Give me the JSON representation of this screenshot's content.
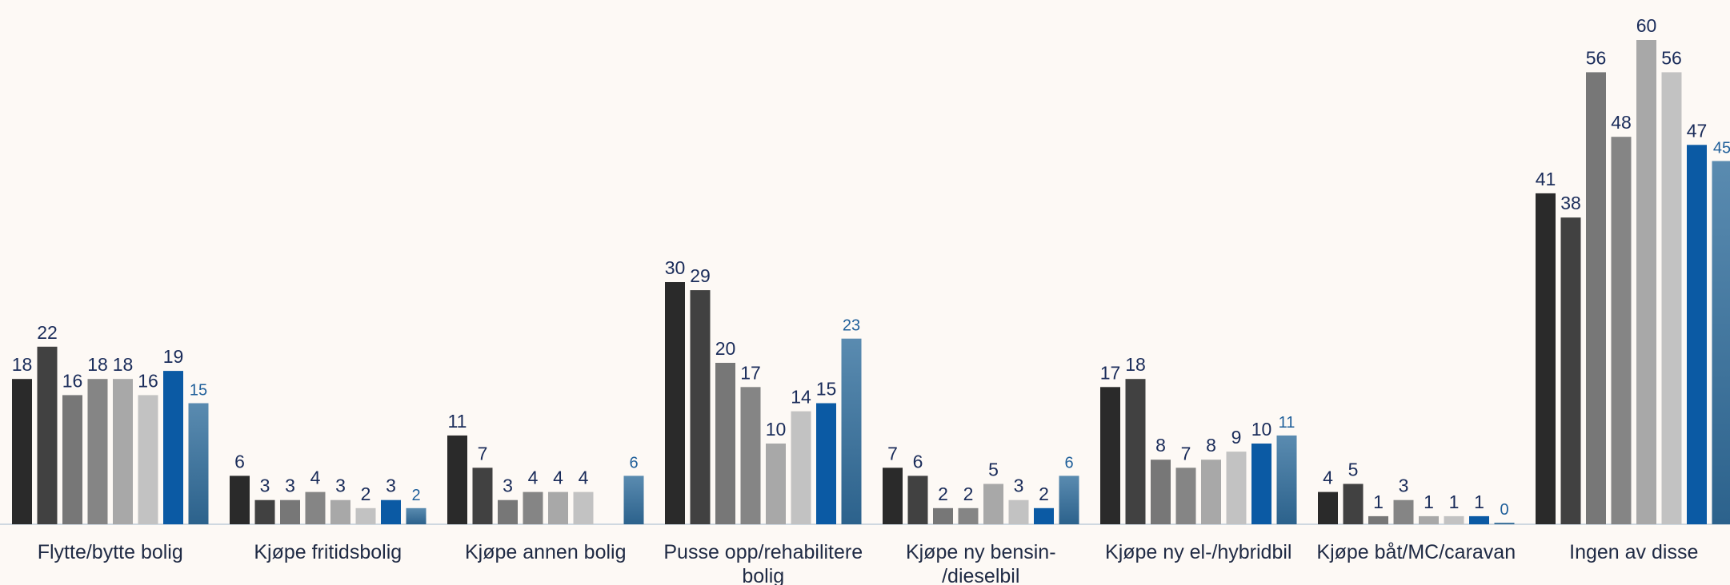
{
  "chart_data": {
    "type": "bar",
    "title": "",
    "xlabel": "",
    "ylabel": "",
    "ylim": [
      0,
      62
    ],
    "grid": false,
    "legend": "none",
    "categories": [
      "Flytte/bytte bolig",
      "Kjøpe fritidsbolig",
      "Kjøpe annen bolig",
      "Pusse opp/rehabilitere bolig",
      "Kjøpe ny bensin-/dieselbil",
      "Kjøpe ny el-/hybridbil",
      "Kjøpe båt/MC/caravan",
      "Ingen av disse"
    ],
    "category_lines": [
      [
        "Flytte/bytte bolig"
      ],
      [
        "Kjøpe fritidsbolig"
      ],
      [
        "Kjøpe annen bolig"
      ],
      [
        "Pusse opp/rehabilitere",
        "bolig"
      ],
      [
        "Kjøpe ny bensin-",
        "/dieselbil"
      ],
      [
        "Kjøpe ny el-/hybridbil"
      ],
      [
        "Kjøpe båt/MC/caravan"
      ],
      [
        "Ingen av disse"
      ]
    ],
    "series": [
      {
        "values": [
          18,
          6,
          11,
          30,
          7,
          17,
          4,
          41
        ],
        "color": "#2a2a2a"
      },
      {
        "values": [
          22,
          3,
          7,
          29,
          6,
          18,
          5,
          38
        ],
        "color": "#414141"
      },
      {
        "values": [
          16,
          3,
          3,
          20,
          2,
          8,
          1,
          56
        ],
        "color": "#777777"
      },
      {
        "values": [
          18,
          4,
          4,
          17,
          2,
          7,
          3,
          48
        ],
        "color": "#858585"
      },
      {
        "values": [
          18,
          3,
          4,
          10,
          5,
          8,
          1,
          60
        ],
        "color": "#a8a8a8"
      },
      {
        "values": [
          16,
          2,
          4,
          14,
          3,
          9,
          1,
          56
        ],
        "color": "#c2c2c2"
      },
      {
        "values": [
          19,
          3,
          null,
          15,
          2,
          10,
          1,
          47
        ],
        "color": "#0b5aa4"
      },
      {
        "values": [
          15,
          2,
          6,
          23,
          6,
          11,
          0,
          45
        ],
        "color": "#4f81a6",
        "gradient_to": "#2f6690"
      }
    ]
  }
}
